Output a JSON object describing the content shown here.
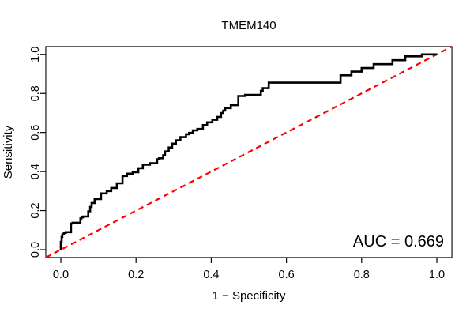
{
  "figure": {
    "title": "TMEM140",
    "annotation": "AUC = 0.669"
  },
  "chart_data": {
    "type": "line",
    "subtype": "roc-curve-step",
    "title": "TMEM140",
    "xlabel": "1 − Specificity",
    "ylabel": "Sensitivity",
    "xlim": [
      0.0,
      1.0
    ],
    "ylim": [
      0.0,
      1.0
    ],
    "grid": false,
    "legend_position": "none",
    "x_ticks": [
      "0.0",
      "0.2",
      "0.4",
      "0.6",
      "0.8",
      "1.0"
    ],
    "y_ticks": [
      "0.0",
      "0.2",
      "0.4",
      "0.6",
      "0.8",
      "1.0"
    ],
    "x_tick_values": [
      0.0,
      0.2,
      0.4,
      0.6,
      0.8,
      1.0
    ],
    "y_tick_values": [
      0.0,
      0.2,
      0.4,
      0.6,
      0.8,
      1.0
    ],
    "auc": 0.669,
    "annotation": "AUC = 0.669",
    "series": [
      {
        "name": "ROC curve (TMEM140)",
        "color": "#000000",
        "line_width": 2.6,
        "style": "step",
        "points": [
          [
            0.0,
            0.0
          ],
          [
            0.002,
            0.04
          ],
          [
            0.004,
            0.065
          ],
          [
            0.008,
            0.078
          ],
          [
            0.013,
            0.086
          ],
          [
            0.027,
            0.09
          ],
          [
            0.031,
            0.134
          ],
          [
            0.052,
            0.138
          ],
          [
            0.055,
            0.16
          ],
          [
            0.059,
            0.166
          ],
          [
            0.073,
            0.17
          ],
          [
            0.078,
            0.196
          ],
          [
            0.082,
            0.219
          ],
          [
            0.09,
            0.239
          ],
          [
            0.107,
            0.259
          ],
          [
            0.122,
            0.288
          ],
          [
            0.134,
            0.3
          ],
          [
            0.149,
            0.316
          ],
          [
            0.164,
            0.34
          ],
          [
            0.176,
            0.377
          ],
          [
            0.191,
            0.389
          ],
          [
            0.206,
            0.397
          ],
          [
            0.218,
            0.417
          ],
          [
            0.237,
            0.435
          ],
          [
            0.256,
            0.443
          ],
          [
            0.261,
            0.463
          ],
          [
            0.272,
            0.468
          ],
          [
            0.277,
            0.483
          ],
          [
            0.287,
            0.503
          ],
          [
            0.296,
            0.523
          ],
          [
            0.306,
            0.543
          ],
          [
            0.318,
            0.56
          ],
          [
            0.333,
            0.576
          ],
          [
            0.341,
            0.591
          ],
          [
            0.351,
            0.598
          ],
          [
            0.363,
            0.611
          ],
          [
            0.378,
            0.618
          ],
          [
            0.389,
            0.638
          ],
          [
            0.403,
            0.652
          ],
          [
            0.416,
            0.665
          ],
          [
            0.426,
            0.68
          ],
          [
            0.432,
            0.7
          ],
          [
            0.437,
            0.712
          ],
          [
            0.452,
            0.725
          ],
          [
            0.472,
            0.74
          ],
          [
            0.49,
            0.787
          ],
          [
            0.493,
            0.793
          ],
          [
            0.532,
            0.793
          ],
          [
            0.537,
            0.813
          ],
          [
            0.553,
            0.827
          ],
          [
            0.57,
            0.855
          ],
          [
            0.744,
            0.855
          ],
          [
            0.748,
            0.893
          ],
          [
            0.773,
            0.893
          ],
          [
            0.776,
            0.912
          ],
          [
            0.8,
            0.912
          ],
          [
            0.805,
            0.93
          ],
          [
            0.832,
            0.93
          ],
          [
            0.836,
            0.95
          ],
          [
            0.882,
            0.95
          ],
          [
            0.885,
            0.97
          ],
          [
            0.916,
            0.97
          ],
          [
            0.922,
            0.99
          ],
          [
            0.96,
            0.99
          ],
          [
            0.965,
            1.0
          ],
          [
            1.0,
            1.0
          ]
        ]
      },
      {
        "name": "reference diagonal",
        "color": "#ff0000",
        "line_width": 2.2,
        "style": "dashed",
        "extends_full_range": true,
        "points": [
          [
            0.0,
            0.0
          ],
          [
            1.0,
            1.0
          ]
        ]
      }
    ]
  },
  "colors": {
    "curve": "#000000",
    "diagonal": "#ff0000",
    "axis": "#000000",
    "background": "#ffffff",
    "text": "#000000"
  }
}
